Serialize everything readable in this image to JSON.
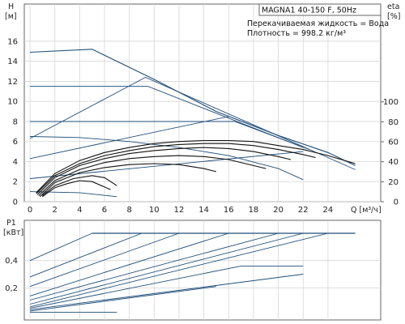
{
  "chart_data": [
    {
      "type": "line",
      "title_box": "MAGNA1 40-150 F, 50Hz",
      "info_lines": [
        "Перекачиваемая жидкость = Вода",
        "Плотность = 998.2 кг/м³"
      ],
      "left_axis": {
        "label": "H",
        "unit": "[м]",
        "ylim": [
          0,
          17
        ],
        "ticks": [
          0,
          2,
          4,
          6,
          8,
          10,
          12,
          14,
          16
        ]
      },
      "right_axis": {
        "label": "eta",
        "unit": "[%]",
        "ylim": [
          0,
          115
        ],
        "ticks": [
          0,
          20,
          40,
          60,
          80,
          100
        ]
      },
      "x_axis": {
        "label": "Q [м³/ч]",
        "xlim": [
          0,
          26
        ],
        "ticks": [
          0,
          2,
          4,
          6,
          8,
          10,
          12,
          14,
          16,
          18,
          20,
          22,
          24
        ]
      },
      "grid": true,
      "series": [
        {
          "role": "max_curve",
          "color": "#1f4e79",
          "points": [
            [
              0,
              14.9
            ],
            [
              5,
              15.2
            ],
            [
              10,
              12.2
            ],
            [
              15,
              9.0
            ],
            [
              20,
              6.6
            ],
            [
              24,
              4.9
            ],
            [
              26.2,
              3.6
            ]
          ]
        },
        {
          "role": "constant_pressure",
          "color": "#1f4e79",
          "points": [
            [
              0,
              11.5
            ],
            [
              9.5,
              11.5
            ],
            [
              22,
              5.4
            ]
          ]
        },
        {
          "role": "constant_pressure",
          "color": "#1f4e79",
          "points": [
            [
              0,
              8.0
            ],
            [
              16.5,
              8.0
            ],
            [
              22.5,
              5.2
            ]
          ]
        },
        {
          "role": "proportional_pressure",
          "color": "#1f4e79",
          "points": [
            [
              0,
              6.3
            ],
            [
              9.3,
              12.4
            ],
            [
              26.2,
              3.2
            ]
          ]
        },
        {
          "role": "proportional_pressure",
          "color": "#1f4e79",
          "points": [
            [
              0,
              4.3
            ],
            [
              16,
              8.5
            ]
          ]
        },
        {
          "role": "proportional_pressure",
          "color": "#1f4e79",
          "points": [
            [
              0,
              2.3
            ],
            [
              22,
              5.0
            ]
          ]
        },
        {
          "role": "constant_curve",
          "color": "#1f4e79",
          "points": [
            [
              0,
              6.5
            ],
            [
              4,
              6.4
            ],
            [
              8,
              6.0
            ],
            [
              12,
              5.4
            ],
            [
              16,
              4.6
            ],
            [
              20,
              3.3
            ],
            [
              22,
              2.2
            ]
          ]
        },
        {
          "role": "constant_curve",
          "color": "#1f4e79",
          "points": [
            [
              0,
              1.0
            ],
            [
              4,
              0.9
            ],
            [
              7,
              0.5
            ]
          ]
        },
        {
          "role": "efficiency",
          "color": "#111111",
          "points": [
            [
              0.5,
              0.9
            ],
            [
              2,
              2.8
            ],
            [
              4,
              4.1
            ],
            [
              6,
              4.9
            ],
            [
              8,
              5.4
            ],
            [
              10,
              5.8
            ],
            [
              12,
              6.0
            ],
            [
              14,
              6.1
            ],
            [
              16,
              6.1
            ],
            [
              18,
              6.0
            ],
            [
              20,
              5.6
            ],
            [
              22,
              5.2
            ],
            [
              24,
              4.6
            ],
            [
              26.2,
              3.8
            ]
          ]
        },
        {
          "role": "efficiency",
          "color": "#111111",
          "points": [
            [
              0.5,
              0.8
            ],
            [
              2,
              2.6
            ],
            [
              4,
              3.8
            ],
            [
              6,
              4.6
            ],
            [
              8,
              5.1
            ],
            [
              10,
              5.5
            ],
            [
              12,
              5.7
            ],
            [
              14,
              5.8
            ],
            [
              16,
              5.8
            ],
            [
              18,
              5.6
            ],
            [
              20,
              5.2
            ],
            [
              22,
              4.7
            ],
            [
              23,
              4.4
            ]
          ]
        },
        {
          "role": "efficiency",
          "color": "#111111",
          "points": [
            [
              0.6,
              0.7
            ],
            [
              2,
              2.4
            ],
            [
              4,
              3.6
            ],
            [
              6,
              4.3
            ],
            [
              8,
              4.8
            ],
            [
              10,
              5.1
            ],
            [
              12,
              5.3
            ],
            [
              14,
              5.4
            ],
            [
              16,
              5.3
            ],
            [
              18,
              5.0
            ],
            [
              20,
              4.5
            ],
            [
              21,
              4.2
            ]
          ]
        },
        {
          "role": "efficiency",
          "color": "#111111",
          "points": [
            [
              0.7,
              0.6
            ],
            [
              2,
              2.1
            ],
            [
              4,
              3.2
            ],
            [
              6,
              3.9
            ],
            [
              8,
              4.3
            ],
            [
              10,
              4.5
            ],
            [
              12,
              4.6
            ],
            [
              14,
              4.5
            ],
            [
              16,
              4.2
            ],
            [
              18,
              3.6
            ],
            [
              19,
              3.3
            ]
          ]
        },
        {
          "role": "efficiency",
          "color": "#111111",
          "points": [
            [
              0.8,
              0.5
            ],
            [
              2,
              1.9
            ],
            [
              4,
              2.9
            ],
            [
              6,
              3.4
            ],
            [
              8,
              3.7
            ],
            [
              10,
              3.8
            ],
            [
              12,
              3.7
            ],
            [
              14,
              3.3
            ],
            [
              15,
              3.0
            ]
          ]
        },
        {
          "role": "efficiency",
          "color": "#111111",
          "points": [
            [
              1,
              0.6
            ],
            [
              2,
              1.6
            ],
            [
              3.5,
              2.3
            ],
            [
              5,
              2.6
            ],
            [
              6,
              2.4
            ],
            [
              7,
              1.6
            ]
          ]
        },
        {
          "role": "efficiency",
          "color": "#111111",
          "points": [
            [
              1,
              0.5
            ],
            [
              2,
              1.4
            ],
            [
              3,
              1.8
            ],
            [
              4,
              2.1
            ],
            [
              5,
              2.0
            ],
            [
              6.5,
              1.2
            ]
          ]
        }
      ]
    },
    {
      "type": "line",
      "left_axis": {
        "label": "P1",
        "unit": "[кВт]",
        "ylim": [
          0,
          0.6
        ],
        "ticks": [
          0.2,
          0.4
        ],
        "tick_labels": [
          "0,2",
          "0,4"
        ]
      },
      "x_axis": {
        "xlim": [
          0,
          26
        ]
      },
      "grid": true,
      "series": [
        {
          "role": "max_power",
          "color": "#1f4e79",
          "points": [
            [
              5,
              0.6
            ],
            [
              26.2,
              0.6
            ]
          ]
        },
        {
          "role": "power",
          "color": "#1f4e79",
          "points": [
            [
              0,
              0.4
            ],
            [
              5,
              0.6
            ]
          ]
        },
        {
          "role": "power",
          "color": "#1f4e79",
          "points": [
            [
              0,
              0.28
            ],
            [
              9,
              0.6
            ]
          ]
        },
        {
          "role": "power",
          "color": "#1f4e79",
          "points": [
            [
              0,
              0.21
            ],
            [
              12,
              0.6
            ]
          ]
        },
        {
          "role": "power",
          "color": "#1f4e79",
          "points": [
            [
              0,
              0.14
            ],
            [
              16,
              0.6
            ]
          ]
        },
        {
          "role": "power",
          "color": "#1f4e79",
          "points": [
            [
              0,
              0.11
            ],
            [
              20,
              0.6
            ]
          ]
        },
        {
          "role": "power",
          "color": "#1f4e79",
          "points": [
            [
              0,
              0.08
            ],
            [
              22,
              0.6
            ]
          ]
        },
        {
          "role": "power",
          "color": "#1f4e79",
          "points": [
            [
              0,
              0.06
            ],
            [
              24,
              0.6
            ]
          ]
        },
        {
          "role": "power",
          "color": "#1f4e79",
          "points": [
            [
              0,
              0.05
            ],
            [
              17,
              0.36
            ],
            [
              22,
              0.36
            ]
          ]
        },
        {
          "role": "power",
          "color": "#1f4e79",
          "points": [
            [
              0,
              0.04
            ],
            [
              22,
              0.3
            ]
          ]
        },
        {
          "role": "power",
          "color": "#1f4e79",
          "points": [
            [
              0,
              0.03
            ],
            [
              15,
              0.21
            ]
          ]
        },
        {
          "role": "power",
          "color": "#1f4e79",
          "points": [
            [
              0,
              0.02
            ],
            [
              7,
              0.02
            ]
          ]
        }
      ]
    }
  ]
}
